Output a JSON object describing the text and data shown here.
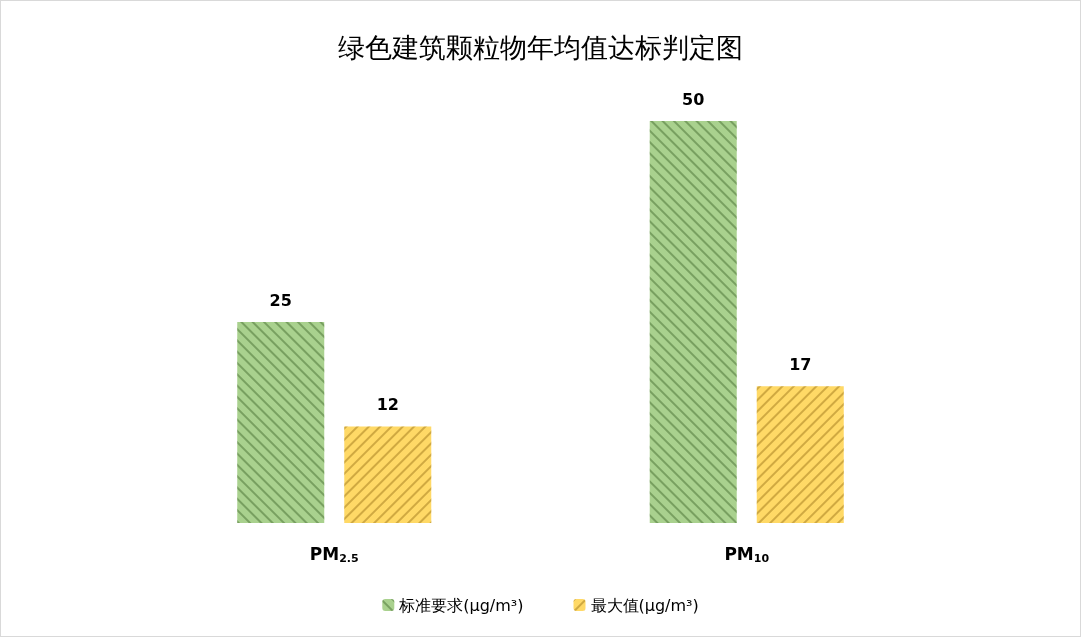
{
  "chart_data": {
    "type": "bar",
    "title": "绿色建筑颗粒物年均值达标判定图",
    "categories": [
      "PM$_{2.5}$",
      "PM$_{10}$"
    ],
    "series": [
      {
        "name": "标准要求(μg/m³)",
        "color": "#a9d18e",
        "values": [
          25,
          50
        ]
      },
      {
        "name": "最大值(μg/m³)",
        "color": "#ffd966",
        "values": [
          12,
          17
        ]
      }
    ],
    "data_labels": true,
    "grid": false,
    "legend": "bottom"
  }
}
